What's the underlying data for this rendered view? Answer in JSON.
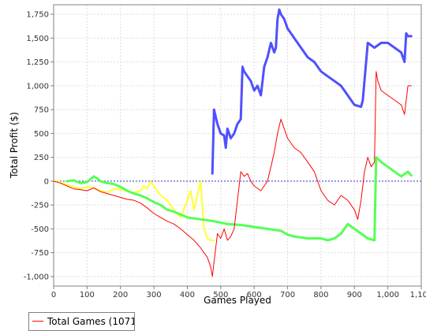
{
  "chart_data": {
    "type": "line",
    "xlabel": "Games Played",
    "ylabel": "Total Profit ($)",
    "xlim": [
      0,
      1100
    ],
    "ylim": [
      -1100,
      1850
    ],
    "x_ticks": [
      0,
      100,
      200,
      300,
      400,
      500,
      600,
      700,
      800,
      900,
      1000,
      1100
    ],
    "x_tick_labels": [
      "0",
      "100",
      "200",
      "300",
      "400",
      "500",
      "600",
      "700",
      "800",
      "900",
      "1,000",
      "1,100"
    ],
    "y_ticks": [
      -1000,
      -750,
      -500,
      -250,
      0,
      250,
      500,
      750,
      1000,
      1250,
      1500,
      1750
    ],
    "y_tick_labels": [
      "-1,000",
      "-750",
      "-500",
      "-250",
      "0",
      "250",
      "500",
      "750",
      "1,000",
      "1,250",
      "1,500",
      "1,750"
    ],
    "grid": true,
    "zero_line": true,
    "legend": {
      "position": "bottom-left",
      "entries": [
        "Total Games (1071"
      ]
    },
    "series": [
      {
        "name": "Total Games (1071",
        "color": "#ff0000",
        "width": 1,
        "x": [
          0,
          20,
          40,
          60,
          80,
          100,
          120,
          140,
          160,
          180,
          200,
          220,
          240,
          260,
          280,
          300,
          320,
          340,
          360,
          380,
          400,
          420,
          440,
          460,
          470,
          475,
          480,
          485,
          490,
          500,
          510,
          520,
          530,
          540,
          550,
          560,
          570,
          580,
          590,
          600,
          620,
          640,
          660,
          670,
          680,
          690,
          700,
          720,
          740,
          760,
          780,
          800,
          820,
          840,
          860,
          880,
          900,
          910,
          920,
          930,
          940,
          950,
          960,
          965,
          970,
          980,
          1000,
          1020,
          1040,
          1050,
          1060,
          1070
        ],
        "y": [
          0,
          -20,
          -50,
          -80,
          -90,
          -100,
          -70,
          -110,
          -130,
          -150,
          -170,
          -190,
          -200,
          -230,
          -280,
          -340,
          -380,
          -420,
          -450,
          -500,
          -560,
          -620,
          -700,
          -800,
          -900,
          -1000,
          -850,
          -700,
          -550,
          -600,
          -500,
          -620,
          -580,
          -500,
          -200,
          100,
          50,
          80,
          0,
          -50,
          -100,
          0,
          300,
          500,
          650,
          550,
          450,
          350,
          300,
          200,
          100,
          -100,
          -200,
          -250,
          -150,
          -200,
          -300,
          -400,
          -200,
          100,
          250,
          150,
          200,
          1150,
          1050,
          950,
          900,
          850,
          800,
          700,
          1000,
          1000
        ]
      },
      {
        "name": "",
        "color": "#5050ff",
        "width": 3,
        "x": [
          475,
          480,
          490,
          500,
          510,
          515,
          520,
          530,
          540,
          550,
          560,
          565,
          570,
          580,
          590,
          600,
          610,
          620,
          630,
          640,
          650,
          660,
          665,
          670,
          675,
          680,
          690,
          700,
          710,
          720,
          740,
          760,
          780,
          800,
          820,
          840,
          860,
          880,
          900,
          920,
          925,
          930,
          940,
          960,
          980,
          1000,
          1020,
          1040,
          1050,
          1055,
          1060,
          1070
        ],
        "y": [
          80,
          750,
          600,
          500,
          480,
          350,
          550,
          450,
          500,
          600,
          650,
          1200,
          1150,
          1100,
          1050,
          950,
          1000,
          900,
          1200,
          1300,
          1450,
          1350,
          1400,
          1700,
          1800,
          1750,
          1700,
          1600,
          1550,
          1500,
          1400,
          1300,
          1250,
          1150,
          1100,
          1050,
          1000,
          900,
          800,
          780,
          850,
          1050,
          1450,
          1400,
          1450,
          1450,
          1400,
          1350,
          1250,
          1550,
          1520,
          1520
        ]
      },
      {
        "name": "",
        "color": "#ffff33",
        "width": 2,
        "x": [
          0,
          20,
          40,
          60,
          80,
          100,
          120,
          140,
          160,
          180,
          200,
          220,
          240,
          260,
          270,
          280,
          290,
          300,
          320,
          340,
          360,
          380,
          400,
          410,
          420,
          430,
          440,
          450,
          460,
          470,
          480
        ],
        "y": [
          0,
          -10,
          -40,
          -60,
          -80,
          -60,
          -70,
          -100,
          -120,
          -80,
          -90,
          -100,
          -120,
          -100,
          -50,
          -80,
          0,
          -50,
          -150,
          -200,
          -300,
          -380,
          -200,
          -100,
          -300,
          -150,
          0,
          -500,
          -600,
          -620,
          -620
        ]
      },
      {
        "name": "",
        "color": "#55ff55",
        "width": 3,
        "x": [
          40,
          60,
          80,
          100,
          120,
          130,
          140,
          160,
          180,
          200,
          220,
          240,
          260,
          280,
          300,
          320,
          340,
          360,
          380,
          400,
          440,
          480,
          520,
          560,
          600,
          640,
          680,
          700,
          720,
          760,
          800,
          820,
          840,
          860,
          880,
          900,
          920,
          940,
          960,
          965,
          980,
          1000,
          1020,
          1040,
          1060,
          1070
        ],
        "y": [
          0,
          10,
          -20,
          -10,
          50,
          30,
          0,
          -20,
          -30,
          -60,
          -100,
          -130,
          -150,
          -180,
          -220,
          -250,
          -300,
          -320,
          -350,
          -380,
          -400,
          -420,
          -450,
          -460,
          -480,
          -500,
          -520,
          -560,
          -580,
          -600,
          -600,
          -620,
          -600,
          -550,
          -450,
          -500,
          -550,
          -600,
          -620,
          250,
          200,
          150,
          100,
          50,
          100,
          60
        ]
      }
    ]
  }
}
